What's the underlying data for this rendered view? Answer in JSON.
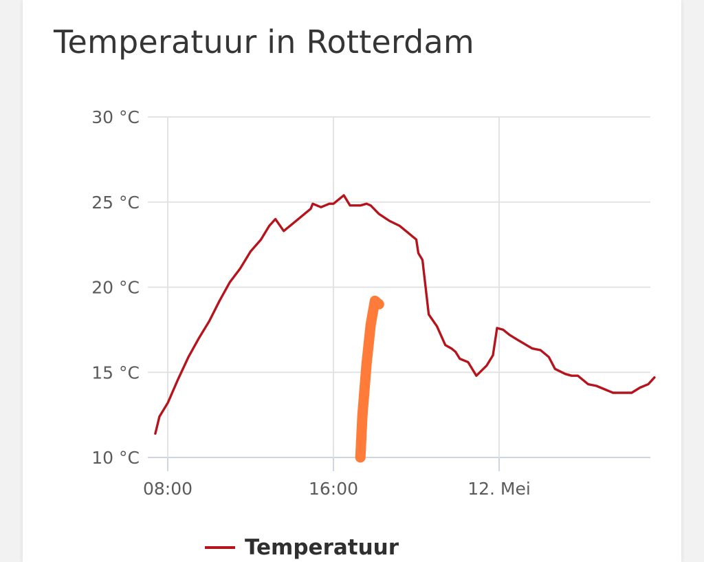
{
  "card": {
    "title": "Temperatuur in Rotterdam"
  },
  "chart_data": {
    "type": "line",
    "title": "Temperatuur in Rotterdam",
    "xlabel": "",
    "ylabel": "",
    "y_ticks": [
      "10 °C",
      "15 °C",
      "20 °C",
      "25 °C",
      "30 °C"
    ],
    "y_tick_values": [
      10,
      15,
      20,
      25,
      30
    ],
    "ylim": [
      10,
      30
    ],
    "x_ticks": [
      "08:00",
      "16:00",
      "12. Mei"
    ],
    "x_tick_hours": [
      8,
      16,
      24
    ],
    "xlim_hours": [
      7.3,
      31.6
    ],
    "grid": true,
    "legend_position": "bottom",
    "series": [
      {
        "name": "Temperatuur",
        "color": "#b5141d",
        "x_hours": [
          7.4,
          7.6,
          8.0,
          8.5,
          9.0,
          9.5,
          10.0,
          10.5,
          11.0,
          11.5,
          12.0,
          12.5,
          12.9,
          13.2,
          13.6,
          14.0,
          14.5,
          14.9,
          15.0,
          15.4,
          15.8,
          16.0,
          16.5,
          16.8,
          17.3,
          17.6,
          17.8,
          18.2,
          18.7,
          19.2,
          19.6,
          19.8,
          20.0,
          20.1,
          20.3,
          20.6,
          21.0,
          21.4,
          21.7,
          21.9,
          22.1,
          22.5,
          22.9,
          23.4,
          23.7,
          23.9,
          24.2,
          24.5,
          24.9,
          25.6,
          26.0,
          26.4,
          26.7,
          27.2,
          27.5,
          27.8,
          28.3,
          28.7,
          29.1,
          29.5,
          30.0,
          30.4,
          30.8,
          31.2,
          31.5
        ],
        "values": [
          11.4,
          12.4,
          13.2,
          14.6,
          15.9,
          17.0,
          18.0,
          19.2,
          20.3,
          21.1,
          22.1,
          22.8,
          23.6,
          24.0,
          23.3,
          23.7,
          24.2,
          24.6,
          24.9,
          24.7,
          24.9,
          24.9,
          25.4,
          24.8,
          24.8,
          24.9,
          24.8,
          24.3,
          23.9,
          23.6,
          23.2,
          23.0,
          22.8,
          22.0,
          21.6,
          18.4,
          17.7,
          16.6,
          16.4,
          16.2,
          15.8,
          15.6,
          14.8,
          15.4,
          16.0,
          17.6,
          17.5,
          17.2,
          16.9,
          16.4,
          16.3,
          15.9,
          15.2,
          14.9,
          14.8,
          14.8,
          14.3,
          14.2,
          14.0,
          13.8,
          13.8,
          13.8,
          14.1,
          14.3,
          14.7
        ]
      }
    ],
    "annotation_stroke": {
      "color": "#ff7b3a",
      "x_hours": [
        17.3,
        17.4,
        17.6,
        17.8,
        18.0,
        18.2
      ],
      "values": [
        10.0,
        12.5,
        15.5,
        17.8,
        19.2,
        19.0
      ]
    }
  }
}
